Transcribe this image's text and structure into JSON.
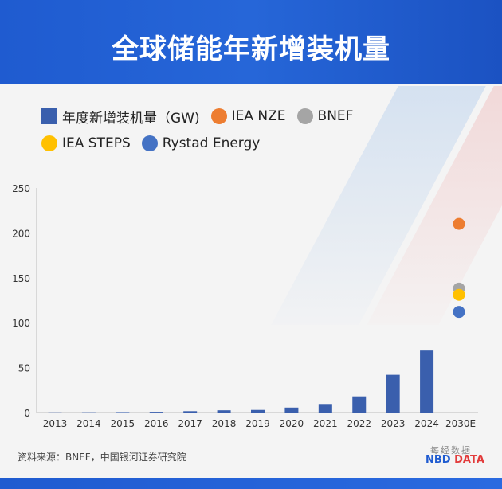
{
  "header": {
    "title": "全球储能年新增装机量"
  },
  "legend": [
    {
      "label": "年度新增装机量（GW)",
      "color": "#3a5fad",
      "shape": "square"
    },
    {
      "label": "IEA NZE",
      "color": "#ed7d31",
      "shape": "circle"
    },
    {
      "label": "BNEF",
      "color": "#a5a5a5",
      "shape": "circle"
    },
    {
      "label": "IEA STEPS",
      "color": "#ffc000",
      "shape": "circle"
    },
    {
      "label": "Rystad Energy",
      "color": "#4472c4",
      "shape": "circle"
    }
  ],
  "chart_data": {
    "type": "bar",
    "title": "全球储能年新增装机量",
    "categories": [
      "2013",
      "2014",
      "2015",
      "2016",
      "2017",
      "2018",
      "2019",
      "2020",
      "2021",
      "2022",
      "2023",
      "2024",
      "2030E"
    ],
    "series": [
      {
        "name": "年度新增装机量（GW)",
        "values": [
          0.2,
          0.3,
          0.5,
          0.8,
          1.5,
          2.5,
          2.9,
          5.5,
          9.5,
          18,
          42,
          69,
          null
        ]
      }
    ],
    "forecasts": [
      {
        "name": "IEA NZE",
        "category": "2030E",
        "value": 210
      },
      {
        "name": "BNEF",
        "category": "2030E",
        "value": 138
      },
      {
        "name": "IEA STEPS",
        "category": "2030E",
        "value": 131
      },
      {
        "name": "Rystad Energy",
        "category": "2030E",
        "value": 112
      }
    ],
    "yticks": [
      "0",
      "50",
      "100",
      "150",
      "200",
      "250"
    ],
    "ylim": [
      0,
      250
    ],
    "bar_color": "#3a5fad",
    "xlabel": "",
    "ylabel": ""
  },
  "footer": {
    "source": "资料来源：BNEF，中国银河证券研究院",
    "logo_top": "每经数据",
    "logo_nbd": "NBD",
    "logo_data": "DATA"
  }
}
